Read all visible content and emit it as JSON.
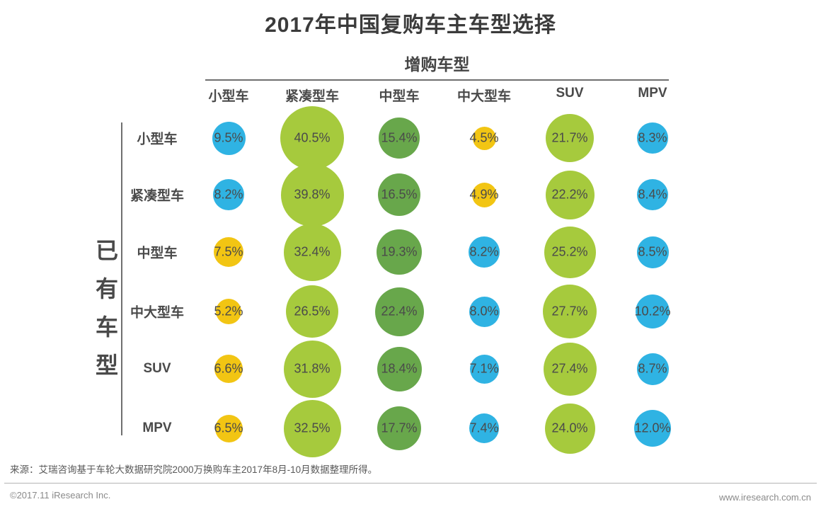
{
  "title": "2017年中国复购车主车型选择",
  "palette": {
    "blue": "#2FB3E3",
    "light_green": "#A6CA3D",
    "green": "#68A74B",
    "yellow": "#F2C513"
  },
  "chart_data": {
    "type": "bubble-matrix",
    "x_axis_title": "增购车型",
    "y_axis_title": "已有车型",
    "value_unit": "%",
    "columns": [
      "小型车",
      "紧凑型车",
      "中型车",
      "中大型车",
      "SUV",
      "MPV"
    ],
    "rows": [
      {
        "label": "小型车",
        "cells": [
          {
            "value": 9.5,
            "label": "9.5%",
            "color": "blue"
          },
          {
            "value": 40.5,
            "label": "40.5%",
            "color": "light_green"
          },
          {
            "value": 15.4,
            "label": "15.4%",
            "color": "green"
          },
          {
            "value": 4.5,
            "label": "4.5%",
            "color": "yellow"
          },
          {
            "value": 21.7,
            "label": "21.7%",
            "color": "light_green"
          },
          {
            "value": 8.3,
            "label": "8.3%",
            "color": "blue"
          }
        ]
      },
      {
        "label": "紧凑型车",
        "cells": [
          {
            "value": 8.2,
            "label": "8.2%",
            "color": "blue"
          },
          {
            "value": 39.8,
            "label": "39.8%",
            "color": "light_green"
          },
          {
            "value": 16.5,
            "label": "16.5%",
            "color": "green"
          },
          {
            "value": 4.9,
            "label": "4.9%",
            "color": "yellow"
          },
          {
            "value": 22.2,
            "label": "22.2%",
            "color": "light_green"
          },
          {
            "value": 8.4,
            "label": "8.4%",
            "color": "blue"
          }
        ]
      },
      {
        "label": "中型车",
        "cells": [
          {
            "value": 7.5,
            "label": "7.5%",
            "color": "yellow"
          },
          {
            "value": 32.4,
            "label": "32.4%",
            "color": "light_green"
          },
          {
            "value": 19.3,
            "label": "19.3%",
            "color": "green"
          },
          {
            "value": 8.2,
            "label": "8.2%",
            "color": "blue"
          },
          {
            "value": 25.2,
            "label": "25.2%",
            "color": "light_green"
          },
          {
            "value": 8.5,
            "label": "8.5%",
            "color": "blue"
          }
        ]
      },
      {
        "label": "中大型车",
        "cells": [
          {
            "value": 5.2,
            "label": "5.2%",
            "color": "yellow"
          },
          {
            "value": 26.5,
            "label": "26.5%",
            "color": "light_green"
          },
          {
            "value": 22.4,
            "label": "22.4%",
            "color": "green"
          },
          {
            "value": 8.0,
            "label": "8.0%",
            "color": "blue"
          },
          {
            "value": 27.7,
            "label": "27.7%",
            "color": "light_green"
          },
          {
            "value": 10.2,
            "label": "10.2%",
            "color": "blue"
          }
        ]
      },
      {
        "label": "SUV",
        "cells": [
          {
            "value": 6.6,
            "label": "6.6%",
            "color": "yellow"
          },
          {
            "value": 31.8,
            "label": "31.8%",
            "color": "light_green"
          },
          {
            "value": 18.4,
            "label": "18.4%",
            "color": "green"
          },
          {
            "value": 7.1,
            "label": "7.1%",
            "color": "blue"
          },
          {
            "value": 27.4,
            "label": "27.4%",
            "color": "light_green"
          },
          {
            "value": 8.7,
            "label": "8.7%",
            "color": "blue"
          }
        ]
      },
      {
        "label": "MPV",
        "cells": [
          {
            "value": 6.5,
            "label": "6.5%",
            "color": "yellow"
          },
          {
            "value": 32.5,
            "label": "32.5%",
            "color": "light_green"
          },
          {
            "value": 17.7,
            "label": "17.7%",
            "color": "green"
          },
          {
            "value": 7.4,
            "label": "7.4%",
            "color": "blue"
          },
          {
            "value": 24.0,
            "label": "24.0%",
            "color": "light_green"
          },
          {
            "value": 12.0,
            "label": "12.0%",
            "color": "blue"
          }
        ]
      }
    ]
  },
  "source": "来源：艾瑞咨询基于车轮大数据研究院2000万换购车主2017年8月-10月数据整理所得。",
  "footer": {
    "left": "©2017.11 iResearch Inc.",
    "right": "www.iresearch.com.cn"
  }
}
